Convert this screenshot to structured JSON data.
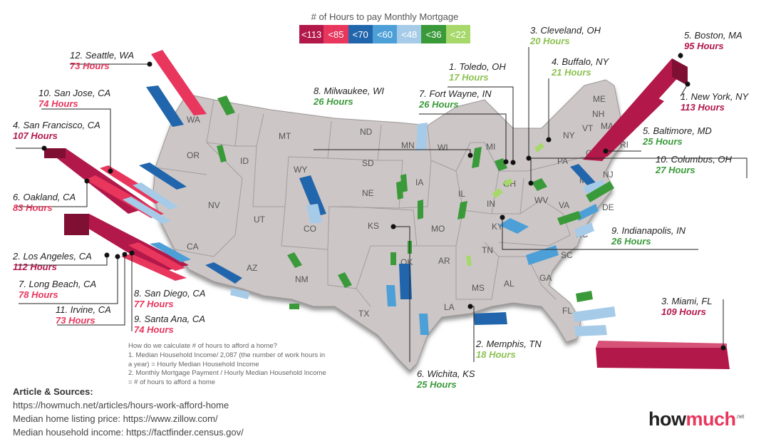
{
  "legend": {
    "title": "# of Hours to pay Monthly Mortgage",
    "items": [
      {
        "label": "<113",
        "color": "#b2184a"
      },
      {
        "label": "<85",
        "color": "#e8365d"
      },
      {
        "label": "<70",
        "color": "#2166ac"
      },
      {
        "label": "<60",
        "color": "#4d9fd8"
      },
      {
        "label": "<48",
        "color": "#a6cbe8"
      },
      {
        "label": "<36",
        "color": "#3a9a3a"
      },
      {
        "label": "<22",
        "color": "#a6d96a"
      }
    ]
  },
  "states": [
    "WA",
    "OR",
    "ID",
    "MT",
    "ND",
    "SD",
    "WY",
    "NV",
    "UT",
    "CO",
    "CA",
    "AZ",
    "NM",
    "NE",
    "KS",
    "OK",
    "TX",
    "MN",
    "WI",
    "IA",
    "IL",
    "MO",
    "AR",
    "LA",
    "MS",
    "AL",
    "TN",
    "KY",
    "IN",
    "MI",
    "OH",
    "WV",
    "VA",
    "NC",
    "SC",
    "GA",
    "FL",
    "PA",
    "NY",
    "VT",
    "NH",
    "ME",
    "MA",
    "RI",
    "CT",
    "NJ",
    "DE",
    "MD"
  ],
  "cities": [
    {
      "name": "12. Seattle, WA",
      "hours": "73 Hours",
      "color": "#e8365d"
    },
    {
      "name": "10. San Jose, CA",
      "hours": "74 Hours",
      "color": "#e8365d"
    },
    {
      "name": "4. San Francisco, CA",
      "hours": "107 Hours",
      "color": "#b2184a"
    },
    {
      "name": "6. Oakland, CA",
      "hours": "83 Hours",
      "color": "#e8365d"
    },
    {
      "name": "2. Los Angeles, CA",
      "hours": "112 Hours",
      "color": "#b2184a"
    },
    {
      "name": "7. Long Beach, CA",
      "hours": "78 Hours",
      "color": "#e8365d"
    },
    {
      "name": "11. Irvine, CA",
      "hours": "73 Hours",
      "color": "#e8365d"
    },
    {
      "name": "8. San Diego, CA",
      "hours": "77 Hours",
      "color": "#e8365d"
    },
    {
      "name": "9. Santa Ana, CA",
      "hours": "74 Hours",
      "color": "#e8365d"
    },
    {
      "name": "8. Milwaukee, WI",
      "hours": "26 Hours",
      "color": "#3a9a3a"
    },
    {
      "name": "7. Fort Wayne, IN",
      "hours": "26 Hours",
      "color": "#3a9a3a"
    },
    {
      "name": "1. Toledo, OH",
      "hours": "17 Hours",
      "color": "#8cc152"
    },
    {
      "name": "3. Cleveland, OH",
      "hours": "20 Hours",
      "color": "#8cc152"
    },
    {
      "name": "4. Buffalo, NY",
      "hours": "21 Hours",
      "color": "#8cc152"
    },
    {
      "name": "5. Boston, MA",
      "hours": "95 Hours",
      "color": "#b2184a"
    },
    {
      "name": "1. New York, NY",
      "hours": "113 Hours",
      "color": "#b2184a"
    },
    {
      "name": "5. Baltimore, MD",
      "hours": "25 Hours",
      "color": "#3a9a3a"
    },
    {
      "name": "10. Columbus, OH",
      "hours": "27 Hours",
      "color": "#3a9a3a"
    },
    {
      "name": "9. Indianapolis, IN",
      "hours": "26 Hours",
      "color": "#3a9a3a"
    },
    {
      "name": "3. Miami, FL",
      "hours": "109 Hours",
      "color": "#b2184a"
    },
    {
      "name": "2. Memphis, TN",
      "hours": "18 Hours",
      "color": "#8cc152"
    },
    {
      "name": "6. Wichita, KS",
      "hours": "25 Hours",
      "color": "#3a9a3a"
    }
  ],
  "note": {
    "lines": [
      "How do we calculate # of hours to afford a home?",
      "1. Median Household Income/ 2,087 (the number of work hours in",
      "a year) = Hourly Median Household Income",
      "2. Monthly Mortgage Payment / Hourly Median Household Income",
      "= # of hours to afford a home"
    ]
  },
  "sources": {
    "heading": "Article & Sources:",
    "lines": [
      "https://howmuch.net/articles/hours-work-afford-home",
      "Median home listing price: https://www.zillow.com/",
      "Median household income: https://factfinder.census.gov/"
    ]
  },
  "logo": {
    "text_a": "how",
    "text_b": "much",
    "suffix": ".net"
  }
}
